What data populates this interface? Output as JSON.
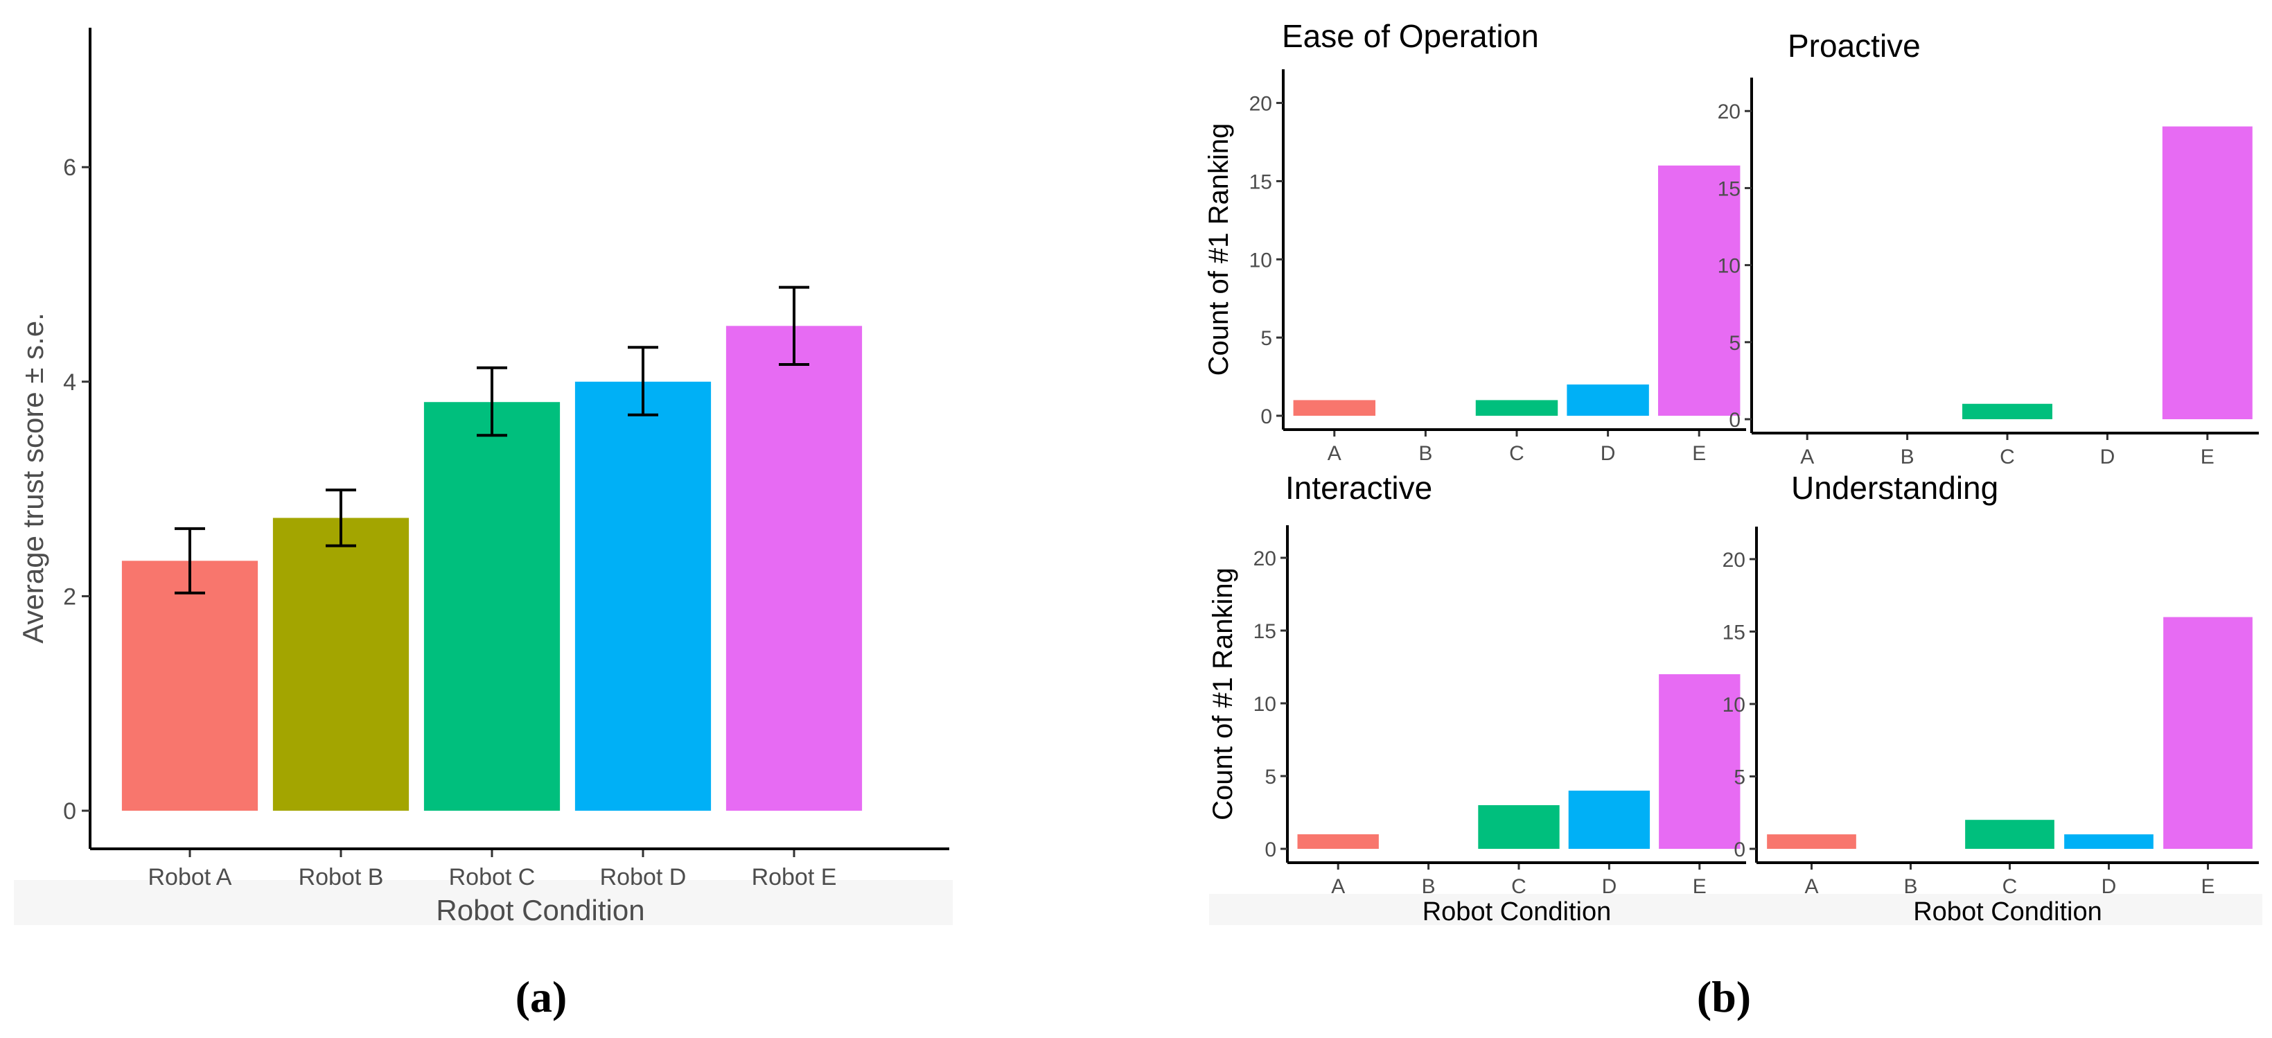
{
  "panel_a": {
    "caption": "(a)",
    "chart_data": {
      "type": "bar",
      "title": "",
      "xlabel": "Robot Condition",
      "ylabel": "Average trust score ± s.e.",
      "categories": [
        "Robot A",
        "Robot B",
        "Robot C",
        "Robot D",
        "Robot E"
      ],
      "values": [
        2.33,
        2.73,
        3.81,
        4.0,
        4.52
      ],
      "error_low": [
        2.03,
        2.47,
        3.5,
        3.69,
        4.16
      ],
      "error_high": [
        2.63,
        2.99,
        4.13,
        4.32,
        4.88
      ],
      "colors": [
        "#F8766D",
        "#A3A500",
        "#00BF7D",
        "#00B0F6",
        "#E76BF3"
      ],
      "ylim": [
        0,
        7.3
      ],
      "yticks": [
        0,
        2,
        4,
        6
      ],
      "ytick_labels": [
        "0",
        "2",
        "4",
        "6"
      ]
    }
  },
  "panel_b": {
    "caption": "(b)",
    "xlabel": "Robot Condition",
    "ylabel": "Count of #1 Ranking",
    "chart_data": [
      {
        "type": "bar",
        "title": "Ease of Operation",
        "categories": [
          "A",
          "B",
          "C",
          "D",
          "E"
        ],
        "values": [
          1,
          0,
          1,
          2,
          16
        ],
        "colors": [
          "#F8766D",
          "#A3A500",
          "#00BF7D",
          "#00B0F6",
          "#E76BF3"
        ],
        "ylim": [
          0,
          21
        ],
        "yticks": [
          0,
          5,
          10,
          15,
          20
        ],
        "ytick_labels": [
          "0",
          "5",
          "10",
          "15",
          "20"
        ],
        "xlabel": "",
        "ylabel": "Count of #1 Ranking"
      },
      {
        "type": "bar",
        "title": "Proactive",
        "categories": [
          "A",
          "B",
          "C",
          "D",
          "E"
        ],
        "values": [
          0,
          0,
          1,
          0,
          19
        ],
        "colors": [
          "#F8766D",
          "#A3A500",
          "#00BF7D",
          "#00B0F6",
          "#E76BF3"
        ],
        "ylim": [
          0,
          21
        ],
        "yticks": [
          0,
          5,
          10,
          15,
          20
        ],
        "ytick_labels": [
          "0",
          "5",
          "10",
          "15",
          "20"
        ],
        "xlabel": "",
        "ylabel": ""
      },
      {
        "type": "bar",
        "title": "Interactive",
        "categories": [
          "A",
          "B",
          "C",
          "D",
          "E"
        ],
        "values": [
          1,
          0,
          3,
          4,
          12
        ],
        "colors": [
          "#F8766D",
          "#A3A500",
          "#00BF7D",
          "#00B0F6",
          "#E76BF3"
        ],
        "ylim": [
          0,
          21
        ],
        "yticks": [
          0,
          5,
          10,
          15,
          20
        ],
        "ytick_labels": [
          "0",
          "5",
          "10",
          "15",
          "20"
        ],
        "xlabel": "Robot Condition",
        "ylabel": "Count of #1 Ranking"
      },
      {
        "type": "bar",
        "title": "Understanding",
        "categories": [
          "A",
          "B",
          "C",
          "D",
          "E"
        ],
        "values": [
          1,
          0,
          2,
          1,
          16
        ],
        "colors": [
          "#F8766D",
          "#A3A500",
          "#00BF7D",
          "#00B0F6",
          "#E76BF3"
        ],
        "ylim": [
          0,
          21
        ],
        "yticks": [
          0,
          5,
          10,
          15,
          20
        ],
        "ytick_labels": [
          "0",
          "5",
          "10",
          "15",
          "20"
        ],
        "xlabel": "Robot Condition",
        "ylabel": ""
      }
    ]
  }
}
